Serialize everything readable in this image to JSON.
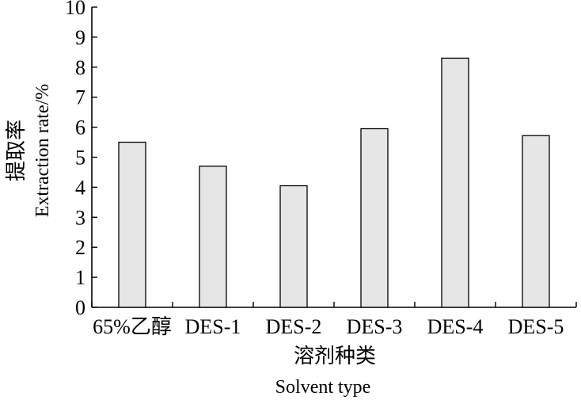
{
  "chart_data": {
    "type": "bar",
    "categories": [
      "65%乙醇",
      "DES-1",
      "DES-2",
      "DES-3",
      "DES-4",
      "DES-5"
    ],
    "values": [
      5.5,
      4.7,
      4.05,
      5.95,
      8.3,
      5.72
    ],
    "ylim": [
      0,
      10
    ],
    "yticks": [
      0,
      1,
      2,
      3,
      4,
      5,
      6,
      7,
      8,
      9,
      10
    ],
    "ylabel_cn": "提取率",
    "ylabel_en": "Extraction rate/%",
    "xlabel_cn": "溶剂种类",
    "xlabel_en": "Solvent type",
    "grid": false,
    "bar_fill": "#e6e6e6",
    "bar_stroke": "#000000"
  }
}
